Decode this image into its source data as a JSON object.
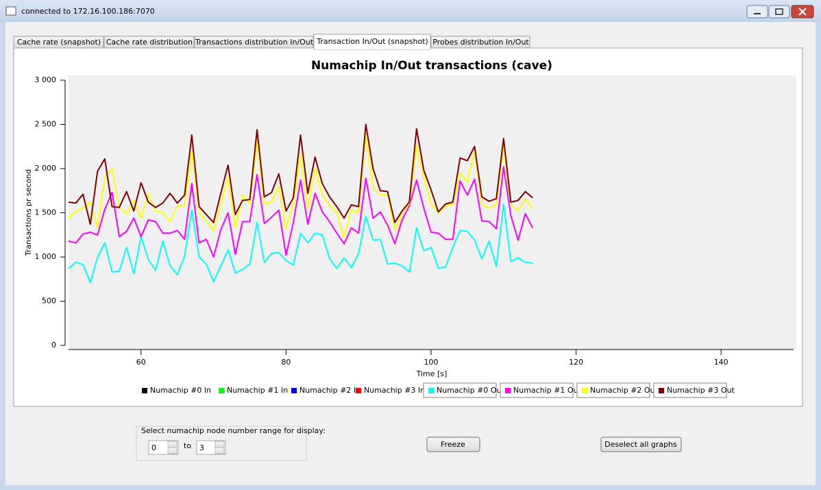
{
  "window": {
    "title": "connected to 172.16.100.186:7070"
  },
  "tabs": [
    "Cache rate (snapshot)",
    "Cache rate distribution",
    "Transactions distribution In/Out",
    "Transaction In/Out (snapshot)",
    "Probes distribution In/Out"
  ],
  "active_tab": 3,
  "chart_data": {
    "type": "line",
    "title": "Numachip In/Out transactions (cave)",
    "x_label": "Time [s]",
    "y_label": "Transactions pr second",
    "xlim": [
      50,
      150
    ],
    "xticks": [
      60,
      80,
      100,
      120,
      140
    ],
    "ylim": [
      0,
      3000
    ],
    "yticks": [
      0,
      500,
      {
        "value": 1000,
        "label": "1 000"
      },
      {
        "value": 1500,
        "label": "1 500"
      },
      {
        "value": 2000,
        "label": "2 000"
      },
      {
        "value": 2500,
        "label": "2 500"
      },
      {
        "value": 3000,
        "label": "3 000"
      }
    ],
    "x": [
      50,
      51,
      52,
      53,
      54,
      55,
      56,
      57,
      58,
      59,
      60,
      61,
      62,
      63,
      64,
      65,
      66,
      67,
      68,
      69,
      70,
      71,
      72,
      73,
      74,
      75,
      76,
      77,
      78,
      79,
      80,
      81,
      82,
      83,
      84,
      85,
      86,
      87,
      88,
      89,
      90,
      91,
      92,
      93,
      94,
      95,
      96,
      97,
      98,
      99,
      100,
      101,
      102,
      103,
      104,
      105,
      106,
      107,
      108,
      109,
      110,
      111,
      112,
      113,
      114
    ],
    "series": [
      {
        "name": "Numachip #0 In",
        "color": "#000000",
        "visible": false
      },
      {
        "name": "Numachip #1 In",
        "color": "#00ff00",
        "visible": false
      },
      {
        "name": "Numachip #2 In",
        "color": "#0000ff",
        "visible": false
      },
      {
        "name": "Numachip #3 In",
        "color": "#ff0000",
        "visible": false
      },
      {
        "name": "Numachip #0 Out",
        "color": "#00ffff",
        "visible": true,
        "values": [
          870,
          940,
          915,
          710,
          1000,
          1160,
          830,
          840,
          1110,
          810,
          1230,
          970,
          850,
          1180,
          900,
          800,
          1010,
          1530,
          1000,
          920,
          720,
          900,
          1080,
          820,
          860,
          920,
          1390,
          940,
          1040,
          1050,
          960,
          910,
          1270,
          1160,
          1270,
          1250,
          980,
          870,
          990,
          880,
          1040,
          1460,
          1190,
          1200,
          920,
          930,
          900,
          830,
          1330,
          1070,
          1110,
          870,
          890,
          1110,
          1300,
          1290,
          1190,
          980,
          1180,
          890,
          1600,
          950,
          990,
          940,
          930
        ]
      },
      {
        "name": "Numachip #1 Out",
        "color": "#ff00ff",
        "visible": true,
        "values": [
          1180,
          1160,
          1260,
          1280,
          1250,
          1540,
          1730,
          1230,
          1290,
          1440,
          1230,
          1420,
          1400,
          1270,
          1270,
          1300,
          1200,
          1830,
          1160,
          1200,
          1000,
          1310,
          1500,
          1030,
          1400,
          1400,
          1930,
          1380,
          1450,
          1530,
          1020,
          1390,
          1870,
          1370,
          1720,
          1510,
          1400,
          1270,
          1150,
          1330,
          1270,
          1890,
          1440,
          1510,
          1360,
          1150,
          1420,
          1580,
          1870,
          1550,
          1280,
          1270,
          1200,
          1200,
          1860,
          1700,
          1880,
          1410,
          1400,
          1320,
          2020,
          1470,
          1190,
          1490,
          1330
        ]
      },
      {
        "name": "Numachip #2 Out",
        "color": "#ffff00",
        "visible": true,
        "values": [
          1440,
          1520,
          1560,
          1620,
          1330,
          1900,
          2000,
          1560,
          1490,
          1640,
          1440,
          1720,
          1520,
          1500,
          1400,
          1580,
          1580,
          2200,
          1500,
          1400,
          1300,
          1600,
          1900,
          1340,
          1700,
          1600,
          2330,
          1600,
          1620,
          1800,
          1320,
          1600,
          2170,
          1550,
          2000,
          1700,
          1580,
          1500,
          1230,
          1530,
          1500,
          2400,
          1780,
          1700,
          1700,
          1300,
          1500,
          1600,
          2260,
          1900,
          1600,
          1500,
          1580,
          1600,
          1950,
          1850,
          2200,
          1600,
          1550,
          1600,
          2260,
          1600,
          1520,
          1660,
          1540
        ]
      },
      {
        "name": "Numachip #3 Out",
        "color": "#800000",
        "visible": true,
        "values": [
          1620,
          1610,
          1710,
          1370,
          1970,
          2110,
          1570,
          1560,
          1740,
          1520,
          1840,
          1620,
          1560,
          1610,
          1720,
          1610,
          1700,
          2380,
          1570,
          1480,
          1390,
          1720,
          2040,
          1480,
          1640,
          1650,
          2440,
          1680,
          1730,
          1940,
          1520,
          1670,
          2380,
          1720,
          2130,
          1830,
          1680,
          1570,
          1440,
          1590,
          1570,
          2500,
          2000,
          1750,
          1740,
          1390,
          1520,
          1620,
          2450,
          1980,
          1760,
          1510,
          1600,
          1620,
          2120,
          2090,
          2250,
          1680,
          1630,
          1660,
          2340,
          1620,
          1640,
          1740,
          1670
        ]
      }
    ]
  },
  "controls": {
    "range_label": "Select numachip node number range for display:",
    "range_from": 0,
    "to_label": "to",
    "range_to": 3,
    "freeze": "Freeze",
    "deselect": "Deselect all graphs"
  }
}
